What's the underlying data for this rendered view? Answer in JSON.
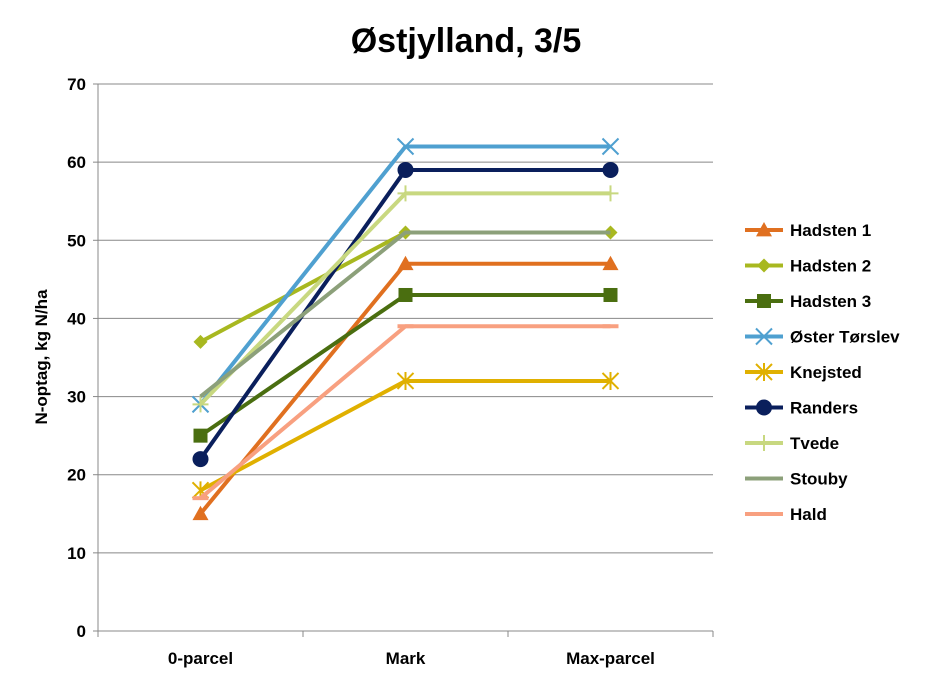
{
  "chart_data": {
    "type": "line",
    "title": "Østjylland, 3/5",
    "xlabel": "",
    "ylabel": "N-optag, kg N/ha",
    "ylim": [
      0,
      70
    ],
    "yticks": [
      0,
      10,
      20,
      30,
      40,
      50,
      60,
      70
    ],
    "grid": true,
    "legend_position": "right",
    "categories": [
      "0-parcel",
      "Mark",
      "Max-parcel"
    ],
    "series": [
      {
        "name": "Hadsten 1",
        "values": [
          15,
          47,
          47
        ],
        "color": "#E07020",
        "marker": "triangle"
      },
      {
        "name": "Hadsten 2",
        "values": [
          37,
          51,
          51
        ],
        "color": "#A8B820",
        "marker": "diamond"
      },
      {
        "name": "Hadsten 3",
        "values": [
          25,
          43,
          43
        ],
        "color": "#4A6E10",
        "marker": "square"
      },
      {
        "name": "Øster Tørslev",
        "values": [
          29,
          62,
          62
        ],
        "color": "#4FA0D0",
        "marker": "x"
      },
      {
        "name": "Knejsted",
        "values": [
          18,
          32,
          32
        ],
        "color": "#E0B000",
        "marker": "star"
      },
      {
        "name": "Randers",
        "values": [
          22,
          59,
          59
        ],
        "color": "#0A1F5C",
        "marker": "circle"
      },
      {
        "name": "Tvede",
        "values": [
          29,
          56,
          56
        ],
        "color": "#C8D880",
        "marker": "plus"
      },
      {
        "name": "Stouby",
        "values": [
          30,
          51,
          51
        ],
        "color": "#8CA07A",
        "marker": "none"
      },
      {
        "name": "Hald",
        "values": [
          17,
          39,
          39
        ],
        "color": "#F8A080",
        "marker": "dash"
      }
    ]
  }
}
